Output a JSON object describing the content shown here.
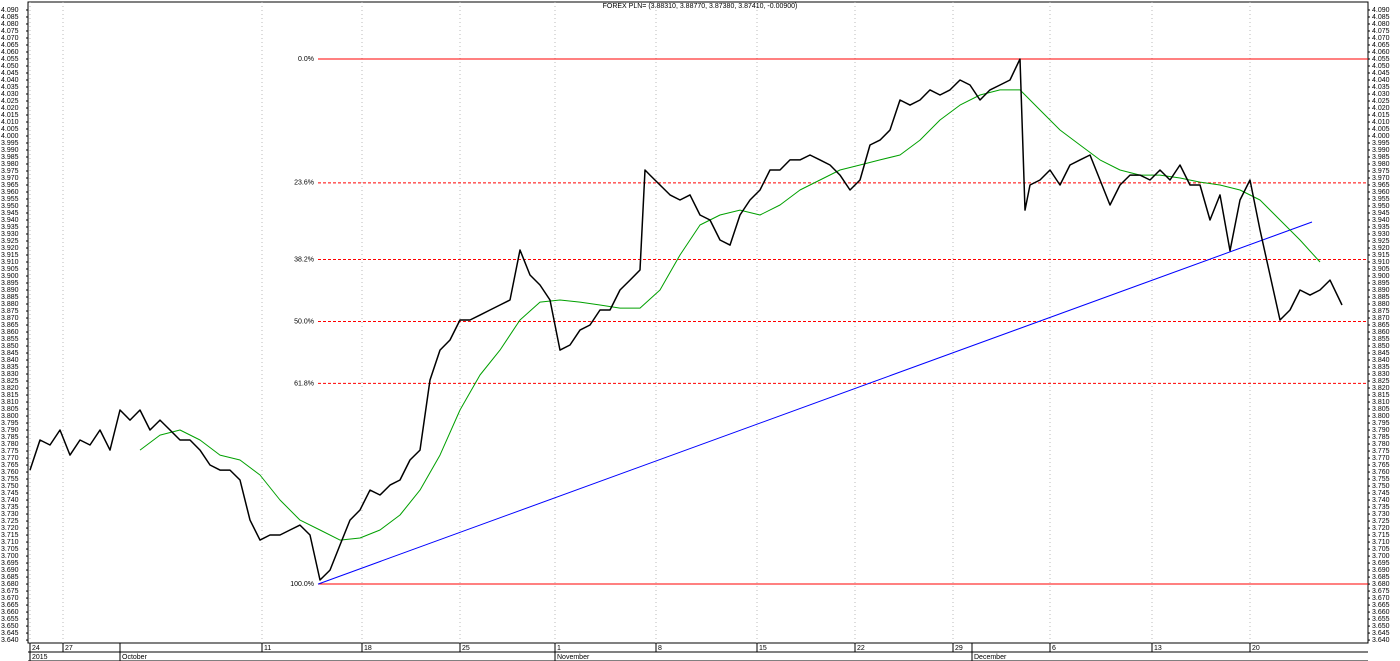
{
  "chart_data": {
    "type": "line",
    "title": "FOREX PLN= (3.88310, 3.88770, 3.87380, 3.87410, -0.00900)",
    "xlim": [
      28,
      1368
    ],
    "ylim": [
      3.6379,
      4.0957
    ],
    "xticks": [
      {
        "value": 30,
        "label": "24"
      },
      {
        "value": 63,
        "label": "27"
      },
      {
        "value": 262,
        "label": "11"
      },
      {
        "value": 362,
        "label": "18"
      },
      {
        "value": 460,
        "label": "25"
      },
      {
        "value": 555,
        "label": "1"
      },
      {
        "value": 656,
        "label": "8"
      },
      {
        "value": 757,
        "label": "15"
      },
      {
        "value": 855,
        "label": "22"
      },
      {
        "value": 953,
        "label": "29"
      },
      {
        "value": 1050,
        "label": "6"
      },
      {
        "value": 1152,
        "label": "13"
      },
      {
        "value": 1250,
        "label": "20"
      }
    ],
    "month_ticks": [
      {
        "value": 30,
        "label": "2015"
      },
      {
        "value": 120,
        "label": "October"
      },
      {
        "value": 555,
        "label": "November"
      },
      {
        "value": 972,
        "label": "December"
      }
    ],
    "yticks": [
      {
        "value": 3.64,
        "label": "3.640"
      },
      3.645,
      {
        "value": 3.65,
        "label": "3.650"
      },
      3.655,
      {
        "value": 3.66,
        "label": "3.660"
      },
      3.665,
      {
        "value": 3.67,
        "label": "3.670"
      },
      3.675,
      {
        "value": 3.68,
        "label": "3.680"
      },
      3.685,
      {
        "value": 3.69,
        "label": "3.690"
      },
      3.695,
      {
        "value": 3.7,
        "label": "3.700"
      },
      3.705,
      {
        "value": 3.71,
        "label": "3.710"
      },
      3.715,
      {
        "value": 3.72,
        "label": "3.720"
      },
      3.725,
      {
        "value": 3.73,
        "label": "3.730"
      },
      3.735,
      {
        "value": 3.74,
        "label": "3.740"
      },
      3.745,
      {
        "value": 3.75,
        "label": "3.750"
      },
      3.755,
      {
        "value": 3.76,
        "label": "3.760"
      },
      3.765,
      {
        "value": 3.77,
        "label": "3.770"
      },
      3.775,
      {
        "value": 3.78,
        "label": "3.780"
      },
      3.785,
      {
        "value": 3.79,
        "label": "3.790"
      },
      3.795,
      {
        "value": 3.8,
        "label": "3.800"
      },
      3.805,
      {
        "value": 3.81,
        "label": "3.810"
      },
      3.815,
      {
        "value": 3.82,
        "label": "3.820"
      },
      3.825,
      {
        "value": 3.83,
        "label": "3.830"
      },
      3.835,
      {
        "value": 3.84,
        "label": "3.840"
      },
      3.845,
      {
        "value": 3.85,
        "label": "3.850"
      },
      3.855,
      {
        "value": 3.86,
        "label": "3.860"
      },
      3.865,
      {
        "value": 3.87,
        "label": "3.870"
      },
      3.875,
      {
        "value": 3.88,
        "label": "3.880"
      },
      3.885,
      {
        "value": 3.89,
        "label": "3.890"
      },
      3.895,
      {
        "value": 3.9,
        "label": "3.900"
      },
      3.905,
      {
        "value": 3.91,
        "label": "3.910"
      },
      3.915,
      {
        "value": 3.92,
        "label": "3.920"
      },
      3.925,
      {
        "value": 3.93,
        "label": "3.930"
      },
      3.935,
      {
        "value": 3.94,
        "label": "3.940"
      },
      3.945,
      {
        "value": 3.95,
        "label": "3.950"
      },
      3.955,
      {
        "value": 3.96,
        "label": "3.960"
      },
      3.965,
      {
        "value": 3.97,
        "label": "3.970"
      },
      3.975,
      {
        "value": 3.98,
        "label": "3.980"
      },
      3.985,
      {
        "value": 3.99,
        "label": "3.990"
      },
      3.995,
      {
        "value": 4,
        "label": "4.000"
      },
      4.005,
      {
        "value": 4.01,
        "label": "4.010"
      },
      4.015,
      {
        "value": 4.02,
        "label": "4.020"
      },
      4.025,
      {
        "value": 4.03,
        "label": "4.030"
      },
      4.035,
      {
        "value": 4.04,
        "label": "4.040"
      },
      4.045,
      {
        "value": 4.05,
        "label": "4.050"
      },
      4.055,
      {
        "value": 4.06,
        "label": "4.060"
      },
      4.065,
      {
        "value": 4.07,
        "label": "4.070"
      },
      4.075,
      {
        "value": 4.08,
        "label": "4.080"
      },
      4.085,
      {
        "value": 4.09,
        "label": "4.090"
      }
    ],
    "series": [
      {
        "color": "#000000",
        "x": [
          30,
          40,
          50,
          60,
          70,
          80,
          90,
          100,
          110,
          120,
          130,
          140,
          150,
          160,
          170,
          180,
          190,
          200,
          210,
          220,
          230,
          240,
          250,
          260,
          270,
          280,
          290,
          300,
          310,
          320,
          330,
          340,
          350,
          360,
          370,
          380,
          390,
          400,
          410,
          420,
          430,
          440,
          450,
          460,
          470,
          480,
          490,
          500,
          510,
          520,
          530,
          540,
          550,
          560,
          570,
          580,
          590,
          600,
          610,
          620,
          630,
          640,
          645,
          650,
          660,
          670,
          680,
          690,
          700,
          710,
          720,
          730,
          740,
          750,
          760,
          770,
          780,
          790,
          800,
          810,
          820,
          830,
          840,
          850,
          860,
          870,
          880,
          890,
          900,
          910,
          920,
          930,
          940,
          950,
          960,
          970,
          980,
          990,
          1000,
          1010,
          1020,
          1025,
          1030,
          1040,
          1050,
          1060,
          1070,
          1080,
          1090,
          1100,
          1110,
          1120,
          1130,
          1140,
          1150,
          1160,
          1170,
          1180,
          1190,
          1200,
          1210,
          1220,
          1230,
          1240,
          1250,
          1260,
          1270,
          1280,
          1290,
          1300,
          1310,
          1320,
          1330,
          1342
        ],
        "values": [
          3.7614,
          3.7829,
          3.7793,
          3.79,
          3.7721,
          3.7829,
          3.7793,
          3.79,
          3.7757,
          3.8043,
          3.7971,
          3.8043,
          3.79,
          3.7971,
          3.79,
          3.7829,
          3.7829,
          3.7757,
          3.765,
          3.7614,
          3.7614,
          3.7543,
          3.7257,
          3.7114,
          3.715,
          3.715,
          3.7186,
          3.7221,
          3.715,
          3.6829,
          3.69,
          3.7079,
          3.7257,
          3.7329,
          3.7471,
          3.7436,
          3.7507,
          3.7543,
          3.7686,
          3.7757,
          3.8257,
          3.8471,
          3.8543,
          3.8686,
          3.8686,
          3.8721,
          3.8757,
          3.8793,
          3.8829,
          3.9186,
          3.9007,
          3.8936,
          3.8829,
          3.8471,
          3.8507,
          3.8614,
          3.865,
          3.8757,
          3.8757,
          3.89,
          3.8971,
          3.9043,
          3.9757,
          3.9721,
          3.965,
          3.9579,
          3.9543,
          3.9579,
          3.9436,
          3.94,
          3.9257,
          3.9221,
          3.9436,
          3.9543,
          3.9614,
          3.9757,
          3.9757,
          3.9829,
          3.9829,
          3.9864,
          3.9829,
          3.9793,
          3.9721,
          3.9614,
          3.9686,
          3.9936,
          3.9971,
          4.0043,
          4.0257,
          4.0221,
          4.0257,
          4.0329,
          4.0293,
          4.0329,
          4.04,
          4.0364,
          4.0257,
          4.0329,
          4.0364,
          4.04,
          4.055,
          3.9471,
          3.965,
          3.9686,
          3.9757,
          3.965,
          3.9793,
          3.9829,
          3.9864,
          3.9686,
          3.9507,
          3.965,
          3.9721,
          3.9721,
          3.9686,
          3.9757,
          3.9686,
          3.9793,
          3.965,
          3.965,
          3.94,
          3.9579,
          3.918,
          3.9543,
          3.9686,
          3.9329,
          3.9007,
          3.8686,
          3.8757,
          3.89,
          3.8864,
          3.89,
          3.8971,
          3.8793
        ]
      },
      {
        "color": "#00a000",
        "x": [
          140,
          160,
          180,
          200,
          220,
          240,
          260,
          280,
          300,
          320,
          340,
          360,
          380,
          400,
          420,
          440,
          460,
          480,
          500,
          520,
          540,
          560,
          580,
          600,
          620,
          640,
          660,
          680,
          700,
          720,
          740,
          760,
          780,
          800,
          820,
          840,
          860,
          880,
          900,
          920,
          940,
          960,
          980,
          1000,
          1020,
          1040,
          1060,
          1080,
          1100,
          1120,
          1140,
          1160,
          1180,
          1200,
          1220,
          1240,
          1260,
          1280,
          1300,
          1320
        ],
        "values": [
          3.7757,
          3.7864,
          3.79,
          3.7829,
          3.7721,
          3.7686,
          3.7579,
          3.74,
          3.7257,
          3.7186,
          3.7114,
          3.7129,
          3.7186,
          3.7293,
          3.7471,
          3.7721,
          3.8043,
          3.8293,
          3.8471,
          3.8686,
          3.8814,
          3.8829,
          3.8814,
          3.8793,
          3.8771,
          3.8771,
          3.89,
          3.915,
          3.9364,
          3.9436,
          3.9471,
          3.9436,
          3.9507,
          3.9614,
          3.9686,
          3.9757,
          3.9793,
          3.9829,
          3.9864,
          3.9971,
          4.0114,
          4.0221,
          4.0293,
          4.0329,
          4.0329,
          4.0186,
          4.0043,
          3.9936,
          3.9829,
          3.9757,
          3.9721,
          3.9721,
          3.97,
          3.9671,
          3.965,
          3.9614,
          3.9543,
          3.94,
          3.9257,
          3.91
        ]
      },
      {
        "color": "#0000ff",
        "x": [
          318,
          1312
        ],
        "values": [
          3.68,
          3.9386
        ]
      }
    ],
    "fib_color": "#ff0000",
    "fib_start": 318,
    "fib_levels": [
      {
        "label": "0.0%",
        "value": 4.055,
        "solid": true
      },
      {
        "label": "23.6%",
        "value": 3.9665
      },
      {
        "label": "38.2%",
        "value": 3.9118
      },
      {
        "label": "50.0%",
        "value": 3.8675
      },
      {
        "label": "61.8%",
        "value": 3.8233
      },
      {
        "label": "100.0%",
        "value": 3.68,
        "solid": true
      }
    ]
  }
}
